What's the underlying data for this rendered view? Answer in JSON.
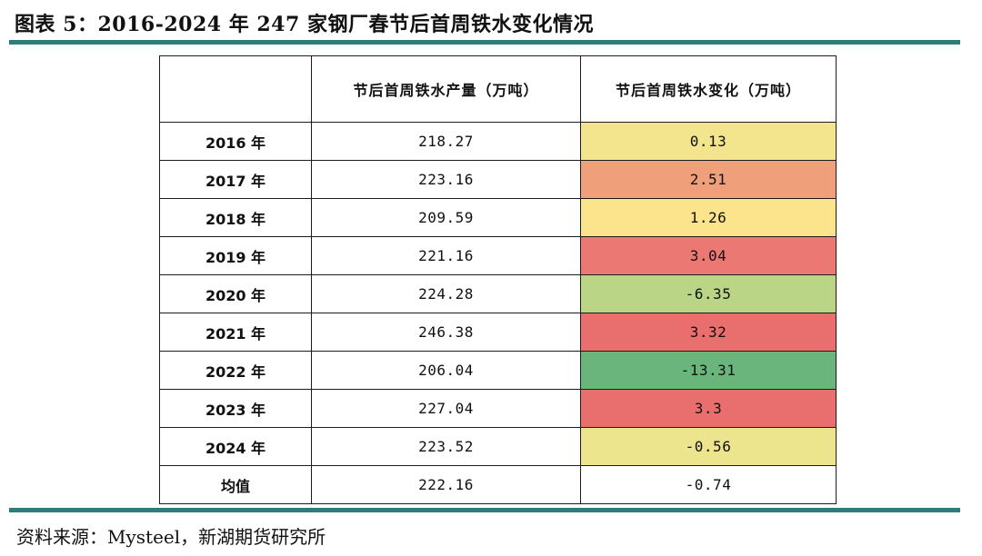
{
  "title": "图表 5：2016-2024 年 247 家钢厂春节后首周铁水变化情况",
  "table": {
    "headers": [
      "",
      "节后首周铁水产量（万吨）",
      "节后首周铁水变化（万吨）"
    ],
    "rows": [
      {
        "year": "2016 年",
        "output": "218.27",
        "change": "0.13",
        "change_color": "#f3e58d"
      },
      {
        "year": "2017 年",
        "output": "223.16",
        "change": "2.51",
        "change_color": "#ef9f79"
      },
      {
        "year": "2018 年",
        "output": "209.59",
        "change": "1.26",
        "change_color": "#fbe48c"
      },
      {
        "year": "2019 年",
        "output": "221.16",
        "change": "3.04",
        "change_color": "#eb7873"
      },
      {
        "year": "2020 年",
        "output": "224.28",
        "change": "-6.35",
        "change_color": "#bad586"
      },
      {
        "year": "2021 年",
        "output": "246.38",
        "change": "3.32",
        "change_color": "#e86f6e"
      },
      {
        "year": "2022 年",
        "output": "206.04",
        "change": "-13.31",
        "change_color": "#69b57b"
      },
      {
        "year": "2023 年",
        "output": "227.04",
        "change": "3.3",
        "change_color": "#e86f6e"
      },
      {
        "year": "2024 年",
        "output": "223.52",
        "change": "-0.56",
        "change_color": "#ede58d"
      },
      {
        "year": "均值",
        "output": "222.16",
        "change": "-0.74",
        "change_color": "#ffffff"
      }
    ]
  },
  "source": "资料来源：Mysteel，新湖期货研究所",
  "colors": {
    "rule": "#2e7b7b"
  }
}
